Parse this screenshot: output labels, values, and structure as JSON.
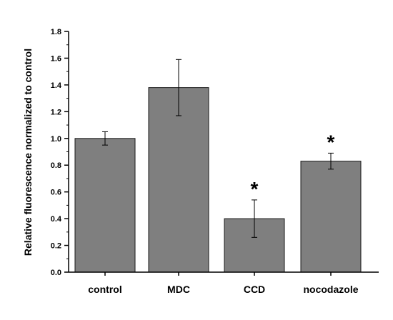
{
  "chart_data": {
    "type": "bar",
    "title": "",
    "xlabel": "",
    "ylabel": "Relative fluorescence normalized to control",
    "categories": [
      "control",
      "MDC",
      "CCD",
      "nocodazole"
    ],
    "values": [
      1.0,
      1.38,
      0.4,
      0.83
    ],
    "error_bars": [
      {
        "low": 0.95,
        "high": 1.05
      },
      {
        "low": 1.17,
        "high": 1.59
      },
      {
        "low": 0.26,
        "high": 0.54
      },
      {
        "low": 0.77,
        "high": 0.89
      }
    ],
    "annotations": [
      "",
      "",
      "*",
      "*"
    ],
    "ylim": [
      0.0,
      1.8
    ],
    "yticks": [
      "0.0",
      "0.2",
      "0.4",
      "0.6",
      "0.8",
      "1.0",
      "1.2",
      "1.4",
      "1.6",
      "1.8"
    ],
    "grid": false,
    "colors": {
      "bar_fill": "#7f7f7f",
      "bar_stroke": "#1a1a1a",
      "axis": "#000000"
    }
  }
}
